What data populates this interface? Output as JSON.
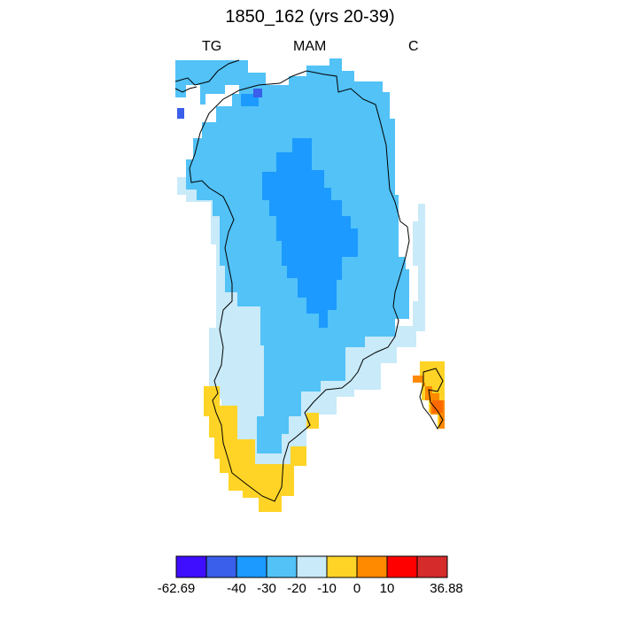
{
  "title": "1850_162 (yrs 20-39)",
  "subtitle_left": "TG",
  "subtitle_center": "MAM",
  "subtitle_right": "C",
  "colorbar": {
    "colors": [
      "#3f0dff",
      "#3a5fea",
      "#1c9aff",
      "#52c2f7",
      "#c9eaf9",
      "#ffd426",
      "#ff8a00",
      "#ff0000",
      "#d62b2b"
    ],
    "labels": [
      "-62.69",
      "-40",
      "-30",
      "-20",
      "-10",
      "0",
      "10",
      "36.88"
    ]
  }
}
